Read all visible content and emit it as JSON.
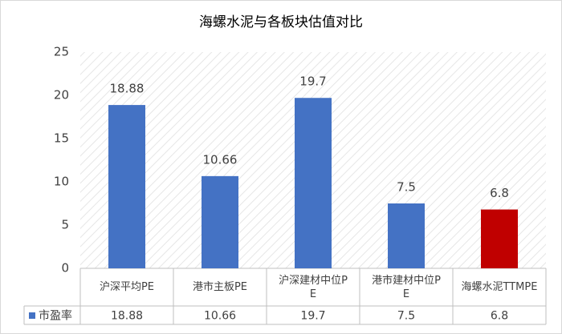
{
  "chart_data": {
    "type": "bar",
    "title": "海螺水泥与各板块估值对比",
    "categories": [
      "沪深平均PE",
      "港市主板PE",
      "沪深建材中位PE",
      "港市建材中位PE",
      "海螺水泥TTMPE"
    ],
    "series": [
      {
        "name": "市盈率",
        "color": "#4472c4",
        "values": [
          18.88,
          10.66,
          19.7,
          7.5,
          6.8
        ],
        "colors": [
          "#4472c4",
          "#4472c4",
          "#4472c4",
          "#4472c4",
          "#c00000"
        ]
      }
    ],
    "ylim": [
      0,
      25
    ],
    "yticks": [
      0,
      5,
      10,
      15,
      20,
      25
    ],
    "grid": false,
    "data_table": true
  }
}
